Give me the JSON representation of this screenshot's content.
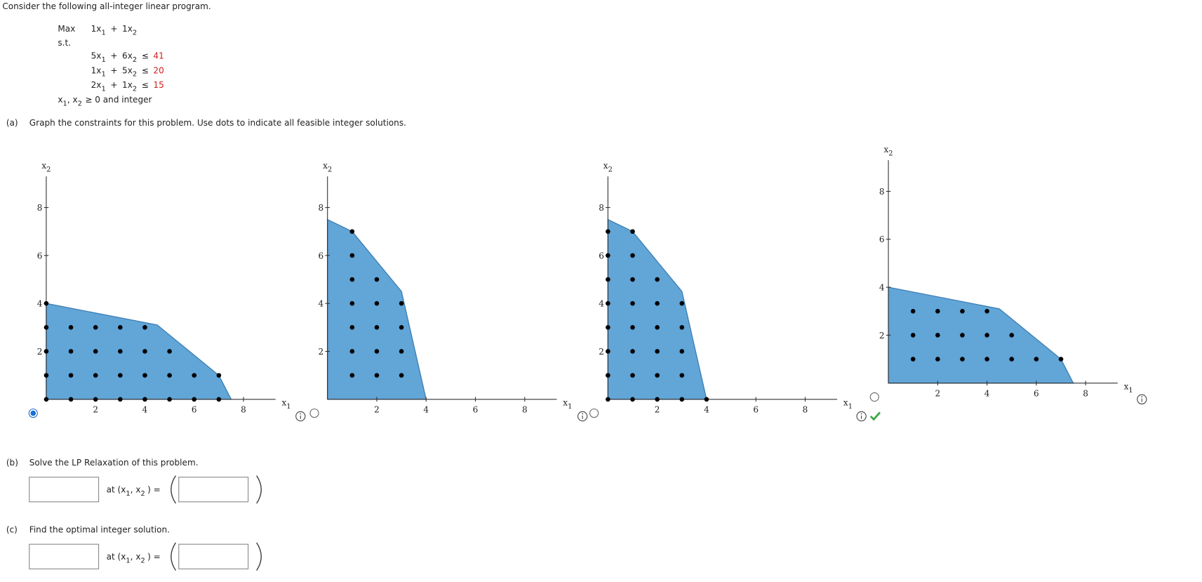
{
  "intro": "Consider the following all-integer linear program.",
  "program": {
    "max_label": "Max",
    "st_label": "s.t.",
    "objective": {
      "terms": [
        {
          "text": "1x",
          "sub": "1"
        },
        {
          "text": "1x",
          "sub": "2"
        }
      ],
      "op": "+"
    },
    "constraints": [
      {
        "terms": [
          {
            "text": "5x",
            "sub": "1"
          },
          {
            "text": "6x",
            "sub": "2"
          }
        ],
        "op": "+",
        "rel": "≤",
        "rhs": 41
      },
      {
        "terms": [
          {
            "text": "1x",
            "sub": "1"
          },
          {
            "text": "5x",
            "sub": "2"
          }
        ],
        "op": "+",
        "rel": "≤",
        "rhs": 20
      },
      {
        "terms": [
          {
            "text": "2x",
            "sub": "1"
          },
          {
            "text": "1x",
            "sub": "2"
          }
        ],
        "op": "+",
        "rel": "≤",
        "rhs": 15
      }
    ],
    "nonneg": [
      {
        "text": "x",
        "sub": "1"
      },
      {
        "text": ", x",
        "sub": "2"
      }
    ],
    "nonneg_tail": "≥ 0 and integer"
  },
  "parts": [
    {
      "label": "(a)",
      "text": "Graph the constraints for this problem. Use dots to indicate all feasible integer solutions."
    },
    {
      "label": "(b)",
      "text": "Solve the LP Relaxation of this problem."
    },
    {
      "label": "(c)",
      "text": "Find the optimal integer solution."
    }
  ],
  "at_text": [
    {
      "text": "at (x",
      "sub": "1"
    },
    {
      "text": ", x",
      "sub": "2"
    }
  ],
  "at_tail": ") =",
  "graphs": {
    "xlabel": {
      "text": "x",
      "sub": "1"
    },
    "ylabel": {
      "text": "x",
      "sub": "2"
    },
    "xlim": [
      0,
      9.3
    ],
    "ylim": [
      0,
      9.3
    ],
    "xticks": [
      2,
      4,
      6,
      8
    ],
    "yticks": [
      2,
      4,
      6,
      8
    ],
    "fill": "#62a5d7",
    "stroke": "#3d7fb5",
    "dot_color": "#000000",
    "options": [
      {
        "selected": true,
        "correct": false,
        "region": [
          [
            0,
            0
          ],
          [
            0,
            4
          ],
          [
            4.5,
            3.1
          ],
          [
            7,
            1
          ],
          [
            7.5,
            0
          ]
        ],
        "points": [
          [
            0,
            0
          ],
          [
            1,
            0
          ],
          [
            2,
            0
          ],
          [
            3,
            0
          ],
          [
            4,
            0
          ],
          [
            5,
            0
          ],
          [
            6,
            0
          ],
          [
            7,
            0
          ],
          [
            0,
            1
          ],
          [
            1,
            1
          ],
          [
            2,
            1
          ],
          [
            3,
            1
          ],
          [
            4,
            1
          ],
          [
            5,
            1
          ],
          [
            6,
            1
          ],
          [
            7,
            1
          ],
          [
            0,
            2
          ],
          [
            1,
            2
          ],
          [
            2,
            2
          ],
          [
            3,
            2
          ],
          [
            4,
            2
          ],
          [
            5,
            2
          ],
          [
            0,
            3
          ],
          [
            1,
            3
          ],
          [
            2,
            3
          ],
          [
            3,
            3
          ],
          [
            4,
            3
          ],
          [
            0,
            4
          ]
        ]
      },
      {
        "selected": false,
        "correct": false,
        "region": [
          [
            0,
            0
          ],
          [
            0,
            7.5
          ],
          [
            1,
            7
          ],
          [
            3,
            4.5
          ],
          [
            4,
            0
          ]
        ],
        "points": [
          [
            1,
            1
          ],
          [
            1,
            2
          ],
          [
            1,
            3
          ],
          [
            1,
            4
          ],
          [
            1,
            5
          ],
          [
            1,
            6
          ],
          [
            1,
            7
          ],
          [
            2,
            1
          ],
          [
            2,
            2
          ],
          [
            2,
            3
          ],
          [
            2,
            4
          ],
          [
            2,
            5
          ],
          [
            3,
            1
          ],
          [
            3,
            2
          ],
          [
            3,
            3
          ],
          [
            3,
            4
          ]
        ]
      },
      {
        "selected": false,
        "correct": false,
        "region": [
          [
            0,
            0
          ],
          [
            0,
            7.5
          ],
          [
            1,
            7
          ],
          [
            3,
            4.5
          ],
          [
            4,
            0
          ]
        ],
        "points": [
          [
            0,
            0
          ],
          [
            0,
            1
          ],
          [
            0,
            2
          ],
          [
            0,
            3
          ],
          [
            0,
            4
          ],
          [
            0,
            5
          ],
          [
            0,
            6
          ],
          [
            0,
            7
          ],
          [
            1,
            0
          ],
          [
            1,
            1
          ],
          [
            1,
            2
          ],
          [
            1,
            3
          ],
          [
            1,
            4
          ],
          [
            1,
            5
          ],
          [
            1,
            6
          ],
          [
            1,
            7
          ],
          [
            2,
            0
          ],
          [
            2,
            1
          ],
          [
            2,
            2
          ],
          [
            2,
            3
          ],
          [
            2,
            4
          ],
          [
            2,
            5
          ],
          [
            3,
            0
          ],
          [
            3,
            1
          ],
          [
            3,
            2
          ],
          [
            3,
            3
          ],
          [
            3,
            4
          ],
          [
            4,
            0
          ]
        ]
      },
      {
        "selected": false,
        "correct": true,
        "region": [
          [
            0,
            0
          ],
          [
            0,
            4
          ],
          [
            4.5,
            3.1
          ],
          [
            7,
            1
          ],
          [
            7.5,
            0
          ]
        ],
        "points": [
          [
            1,
            1
          ],
          [
            2,
            1
          ],
          [
            3,
            1
          ],
          [
            4,
            1
          ],
          [
            5,
            1
          ],
          [
            6,
            1
          ],
          [
            7,
            1
          ],
          [
            1,
            2
          ],
          [
            2,
            2
          ],
          [
            3,
            2
          ],
          [
            4,
            2
          ],
          [
            5,
            2
          ],
          [
            1,
            3
          ],
          [
            2,
            3
          ],
          [
            3,
            3
          ],
          [
            4,
            3
          ]
        ]
      }
    ]
  }
}
